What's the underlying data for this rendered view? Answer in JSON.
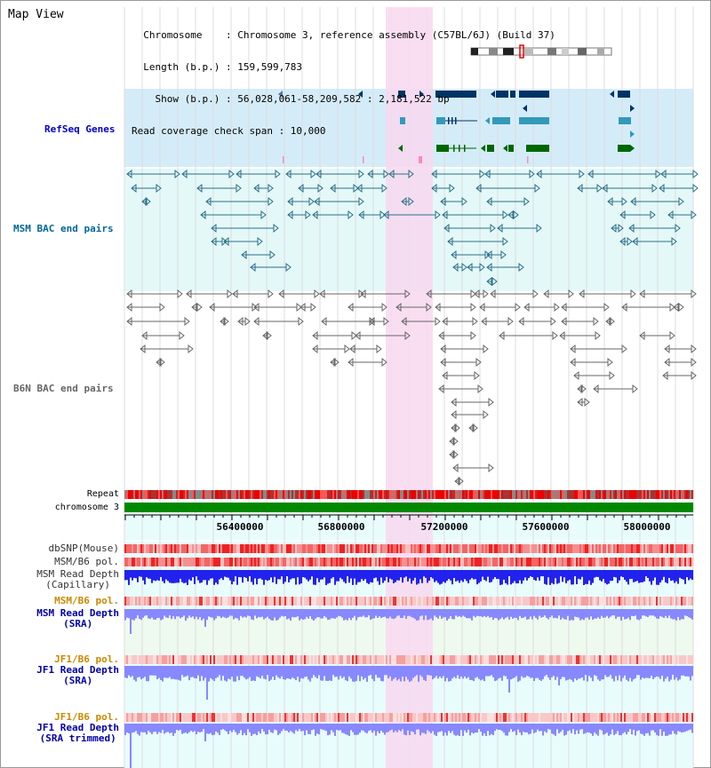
{
  "title": "Map View",
  "info": {
    "lines": [
      "  Chromosome    : Chromosome 3, reference assembly (C57BL/6J) (Build 37)",
      "  Length (b.p.) : 159,599,783",
      "    Show (b.p.) : 56,028,061-58,209,582 : 2,181,522 bp",
      "Read coverage check span : 10,000"
    ]
  },
  "tracks": {
    "refseq": {
      "label": "RefSeq Genes",
      "color": "#0000cc"
    },
    "msm_bac": {
      "label": "MSM BAC end pairs",
      "color": "#006699"
    },
    "b6n_bac": {
      "label": "B6N BAC end pairs",
      "color": "#666666"
    },
    "repeat": {
      "label": "Repeat"
    },
    "chromosome": {
      "label": "chromosome 3"
    }
  },
  "axis": {
    "ticks": [
      "56400000",
      "56800000",
      "57200000",
      "57600000",
      "58000000"
    ]
  },
  "lower_tracks": [
    {
      "id": "dbsnp",
      "lines": [
        "dbSNP(Mouse)"
      ],
      "color": "#333333"
    },
    {
      "id": "msmb6pol1",
      "lines": [
        "MSM/B6 pol."
      ],
      "color": "#333333"
    },
    {
      "id": "msmdepthcap",
      "lines": [
        "MSM Read Depth",
        "(Capillary)"
      ],
      "color": "#333333"
    },
    {
      "id": "msmb6pol2",
      "lines": [
        "MSM/B6 pol."
      ],
      "color": "#cc8800"
    },
    {
      "id": "msmdepthsra",
      "lines": [
        "MSM Read Depth",
        "(SRA)"
      ],
      "color": "#0000aa"
    },
    {
      "id": "jf1pol1",
      "lines": [
        "JF1/B6 pol."
      ],
      "color": "#cc8800"
    },
    {
      "id": "jf1depth",
      "lines": [
        "JF1 Read Depth",
        "(SRA)"
      ],
      "color": "#0000aa"
    },
    {
      "id": "jf1pol2",
      "lines": [
        "JF1/B6 pol."
      ],
      "color": "#cc8800"
    },
    {
      "id": "jf1depthtrim",
      "lines": [
        "JF1 Read Depth",
        "(SRA trimmed)"
      ],
      "color": "#0000aa"
    }
  ],
  "colors": {
    "highlight": "#f8d8f0",
    "refseq_bg": "#d4ecf8",
    "msm_bg": "#e4f8f8",
    "gene_dark": "#003366",
    "gene_mid": "#3399bb",
    "gene_green": "#006600",
    "chrom_green": "#008800",
    "depth_blue": "#2222ee",
    "depth_light": "#8888ff"
  }
}
